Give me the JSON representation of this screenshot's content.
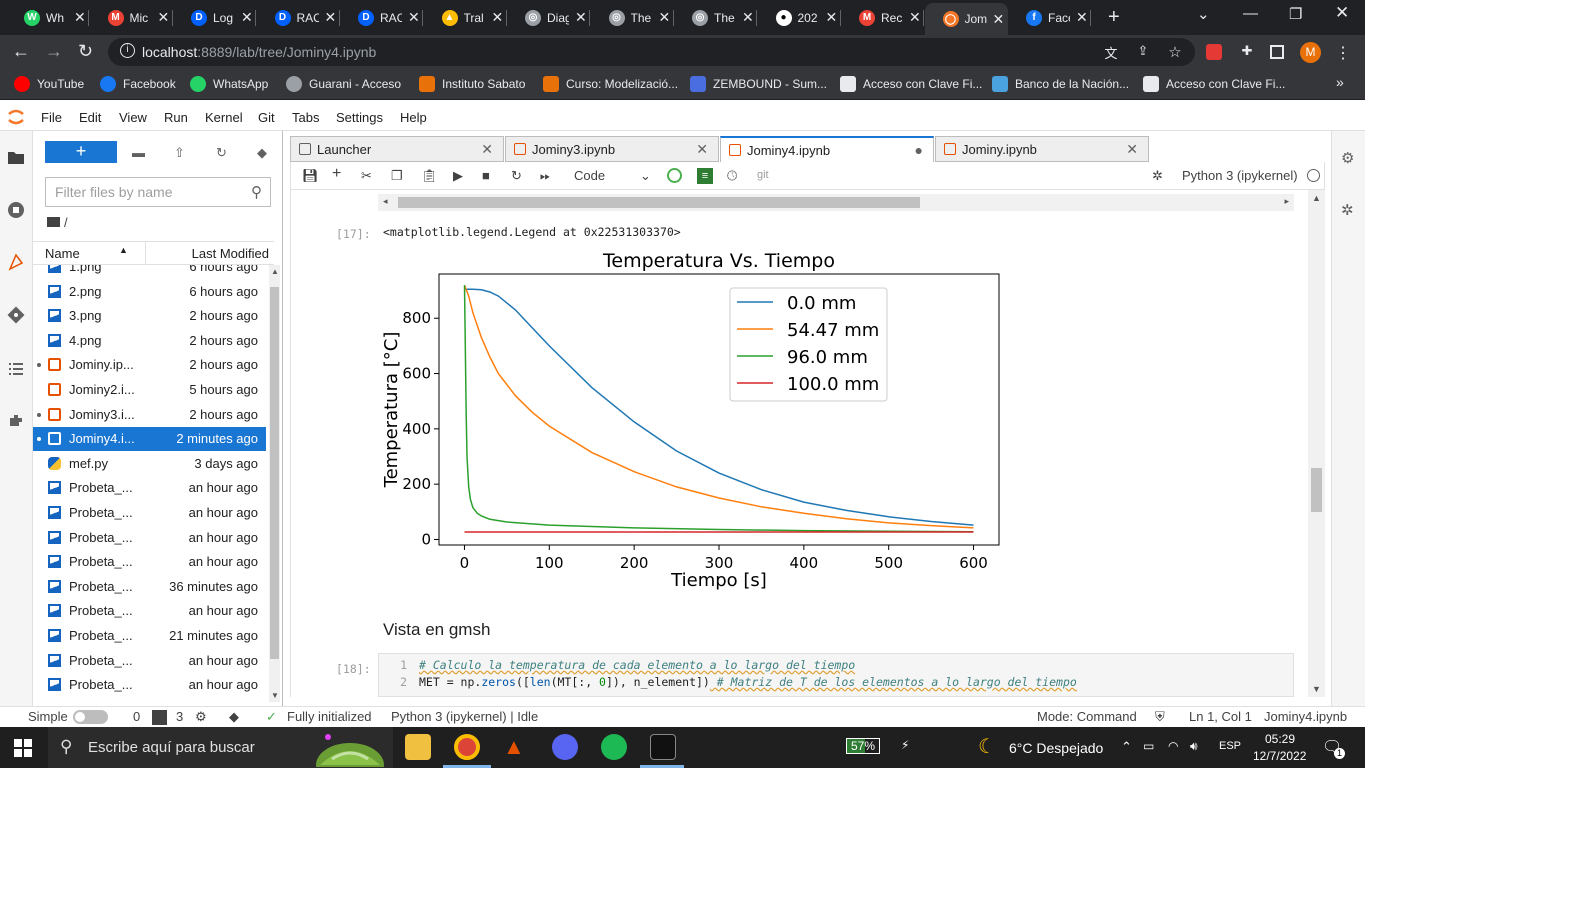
{
  "browser": {
    "tabs": [
      {
        "label": "Wh",
        "color": "#25d366",
        "glyph": "W",
        "active": false
      },
      {
        "label": "Mic",
        "color": "#ea4335",
        "glyph": "M",
        "active": false
      },
      {
        "label": "Log",
        "color": "#0061fe",
        "glyph": "D",
        "active": false
      },
      {
        "label": "RAC",
        "color": "#0061fe",
        "glyph": "D",
        "active": false
      },
      {
        "label": "RAC",
        "color": "#0061fe",
        "glyph": "D",
        "active": false
      },
      {
        "label": "Tral",
        "color": "#fbbc04",
        "glyph": "▲",
        "active": false
      },
      {
        "label": "Diag",
        "color": "#9aa0a6",
        "glyph": "◎",
        "active": false
      },
      {
        "label": "The",
        "color": "#9aa0a6",
        "glyph": "◎",
        "active": false
      },
      {
        "label": "The",
        "color": "#9aa0a6",
        "glyph": "◎",
        "active": false
      },
      {
        "label": "202",
        "color": "#ffffff",
        "glyph": "●",
        "active": false
      },
      {
        "label": "Rec",
        "color": "#ea4335",
        "glyph": "M",
        "active": false
      },
      {
        "label": "Jom",
        "color": "#f37726",
        "glyph": "◯",
        "active": true
      },
      {
        "label": "Face",
        "color": "#1877f2",
        "glyph": "f",
        "active": false
      }
    ],
    "url_host": "localhost",
    "url_path": ":8889/lab/tree/Jominy4.ipynb",
    "avatar_letter": "M",
    "bookmarks": [
      {
        "label": "YouTube",
        "color": "#ff0000"
      },
      {
        "label": "Facebook",
        "color": "#1877f2"
      },
      {
        "label": "WhatsApp",
        "color": "#25d366"
      },
      {
        "label": "Guarani - Acceso",
        "color": "#9aa0a6"
      },
      {
        "label": "Instituto Sabato",
        "color": "#e8710a"
      },
      {
        "label": "Curso: Modelizació...",
        "color": "#e8710a"
      },
      {
        "label": "ZEMBOUND - Sum...",
        "color": "#4a6ee0"
      },
      {
        "label": "Acceso con Clave Fi...",
        "color": "#e8eaed"
      },
      {
        "label": "Banco de la Nación...",
        "color": "#4aa3df"
      },
      {
        "label": "Acceso con Clave Fi...",
        "color": "#e8eaed"
      }
    ]
  },
  "menu": [
    "File",
    "Edit",
    "View",
    "Run",
    "Kernel",
    "Git",
    "Tabs",
    "Settings",
    "Help"
  ],
  "filebrowser": {
    "new_label": "+",
    "filter_placeholder": "Filter files by name",
    "breadcrumb": "/",
    "col_name": "Name",
    "col_modified": "Last Modified",
    "files": [
      {
        "name": "1.png",
        "modified": "6 hours ago",
        "type": "image",
        "running": false,
        "selected": false
      },
      {
        "name": "2.png",
        "modified": "6 hours ago",
        "type": "image",
        "running": false,
        "selected": false
      },
      {
        "name": "3.png",
        "modified": "2 hours ago",
        "type": "image",
        "running": false,
        "selected": false
      },
      {
        "name": "4.png",
        "modified": "2 hours ago",
        "type": "image",
        "running": false,
        "selected": false
      },
      {
        "name": "Jominy.ip...",
        "modified": "2 hours ago",
        "type": "notebook",
        "running": true,
        "selected": false
      },
      {
        "name": "Jominy2.i...",
        "modified": "5 hours ago",
        "type": "notebook",
        "running": false,
        "selected": false
      },
      {
        "name": "Jominy3.i...",
        "modified": "2 hours ago",
        "type": "notebook",
        "running": true,
        "selected": false
      },
      {
        "name": "Jominy4.i...",
        "modified": "2 minutes ago",
        "type": "notebook",
        "running": true,
        "selected": true
      },
      {
        "name": "mef.py",
        "modified": "3 days ago",
        "type": "python",
        "running": false,
        "selected": false
      },
      {
        "name": "Probeta_...",
        "modified": "an hour ago",
        "type": "image",
        "running": false,
        "selected": false
      },
      {
        "name": "Probeta_...",
        "modified": "an hour ago",
        "type": "image",
        "running": false,
        "selected": false
      },
      {
        "name": "Probeta_...",
        "modified": "an hour ago",
        "type": "image",
        "running": false,
        "selected": false
      },
      {
        "name": "Probeta_...",
        "modified": "an hour ago",
        "type": "image",
        "running": false,
        "selected": false
      },
      {
        "name": "Probeta_...",
        "modified": "36 minutes ago",
        "type": "image",
        "running": false,
        "selected": false
      },
      {
        "name": "Probeta_...",
        "modified": "an hour ago",
        "type": "image",
        "running": false,
        "selected": false
      },
      {
        "name": "Probeta_...",
        "modified": "21 minutes ago",
        "type": "image",
        "running": false,
        "selected": false
      },
      {
        "name": "Probeta_...",
        "modified": "an hour ago",
        "type": "image",
        "running": false,
        "selected": false
      },
      {
        "name": "Probeta_...",
        "modified": "an hour ago",
        "type": "image",
        "running": false,
        "selected": false
      }
    ]
  },
  "dock_tabs": [
    {
      "label": "Launcher",
      "current": false,
      "dirty": false
    },
    {
      "label": "Jominy3.ipynb",
      "current": false,
      "dirty": false
    },
    {
      "label": "Jominy4.ipynb",
      "current": true,
      "dirty": true
    },
    {
      "label": "Jominy.ipynb",
      "current": false,
      "dirty": false
    }
  ],
  "notebook": {
    "cell_type": "Code",
    "git_label": "git",
    "kernel": "Python 3 (ipykernel)",
    "out_prompt": "[17]:",
    "out_text": "<matplotlib.legend.Legend at 0x22531303370>",
    "heading": "Vista en gmsh",
    "in_prompt": "[18]:",
    "code_lines": [
      {
        "n": "1",
        "segments": [
          {
            "t": "# Calculo la temperatura de cada elemento a lo largo del tiempo",
            "c": "cmt sq"
          }
        ]
      },
      {
        "n": "2",
        "segments": [
          {
            "t": "MET = np.",
            "c": ""
          },
          {
            "t": "zeros",
            "c": "nf"
          },
          {
            "t": "([",
            "c": ""
          },
          {
            "t": "len",
            "c": "nf"
          },
          {
            "t": "(MT[:, ",
            "c": ""
          },
          {
            "t": "0",
            "c": "nm"
          },
          {
            "t": "]), n_element])",
            "c": ""
          },
          {
            "t": " # Matriz de T de los elementos a lo largo del tiempo",
            "c": "cmt sq"
          }
        ]
      }
    ]
  },
  "chart_data": {
    "type": "line",
    "title": "Temperatura Vs. Tiempo",
    "xlabel": "Tiempo [s]",
    "ylabel": "Temperatura [°C]",
    "xlim": [
      -30,
      630
    ],
    "ylim": [
      -20,
      960
    ],
    "xticks": [
      0,
      100,
      200,
      300,
      400,
      500,
      600
    ],
    "yticks": [
      0,
      200,
      400,
      600,
      800
    ],
    "grid": false,
    "legend_position": "upper-right",
    "series": [
      {
        "name": "0.0 mm",
        "color": "#1f77b4",
        "x": [
          0,
          10,
          20,
          30,
          40,
          60,
          80,
          100,
          150,
          200,
          250,
          300,
          350,
          400,
          450,
          500,
          550,
          600
        ],
        "y": [
          905,
          905,
          903,
          895,
          880,
          830,
          765,
          700,
          550,
          425,
          320,
          240,
          180,
          135,
          105,
          82,
          65,
          52
        ]
      },
      {
        "name": "54.47 mm",
        "color": "#ff7f0e",
        "x": [
          0,
          5,
          10,
          20,
          30,
          40,
          60,
          80,
          100,
          150,
          200,
          250,
          300,
          350,
          400,
          450,
          500,
          550,
          600
        ],
        "y": [
          920,
          880,
          820,
          730,
          660,
          600,
          520,
          460,
          410,
          315,
          245,
          190,
          150,
          118,
          95,
          75,
          60,
          50,
          42
        ]
      },
      {
        "name": "96.0 mm",
        "color": "#2ca02c",
        "x": [
          0,
          1,
          2,
          3,
          5,
          7,
          10,
          15,
          20,
          30,
          50,
          100,
          200,
          300,
          400,
          500,
          600
        ],
        "y": [
          920,
          700,
          450,
          300,
          190,
          145,
          115,
          95,
          85,
          73,
          63,
          52,
          42,
          36,
          32,
          30,
          28
        ]
      },
      {
        "name": "100.0 mm",
        "color": "#d62728",
        "x": [
          0,
          600
        ],
        "y": [
          27,
          27
        ]
      }
    ]
  },
  "status": {
    "mode_label": "Simple",
    "terminals": "0",
    "kernels": "3",
    "init": "Fully initialized",
    "kernel_status": "Python 3 (ipykernel) | Idle",
    "mode": "Mode: Command",
    "position": "Ln 1, Col 1",
    "file": "Jominy4.ipynb"
  },
  "taskbar": {
    "search_placeholder": "Escribe aquí para buscar",
    "battery": "57%",
    "weather": "6°C  Despejado",
    "lang": "ESP",
    "time": "05:29",
    "date": "12/7/2022",
    "notif": "1"
  }
}
